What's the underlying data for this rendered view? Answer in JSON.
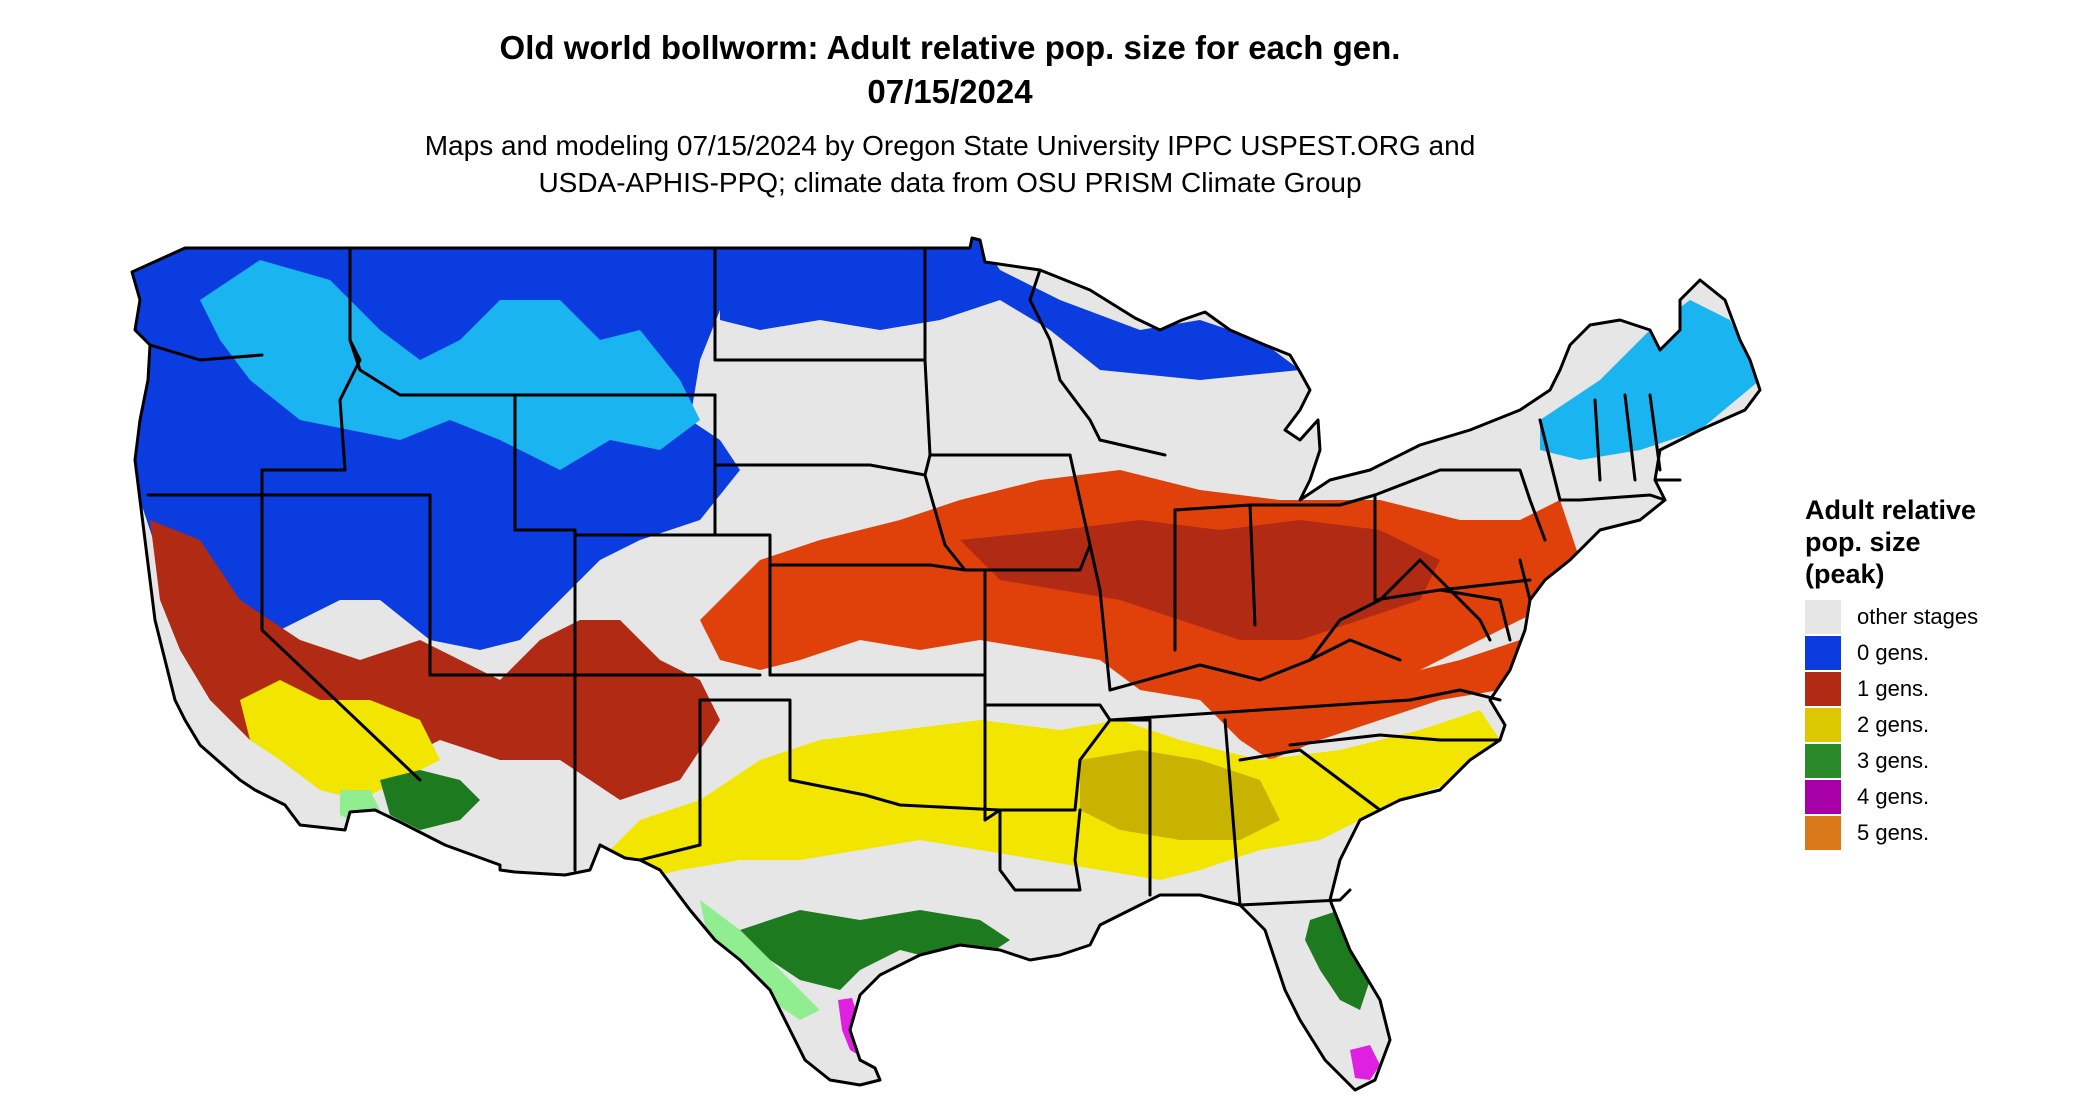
{
  "title_line1": "Old world bollworm: Adult relative pop. size for each gen.",
  "title_line2": "07/15/2024",
  "subtitle_line1": "Maps and modeling 07/15/2024 by Oregon State University IPPC USPEST.ORG and",
  "subtitle_line2": "USDA-APHIS-PPQ; climate data from OSU PRISM Climate Group",
  "legend": {
    "title_lines": [
      "Adult relative",
      "pop. size",
      "(peak)"
    ],
    "items": [
      {
        "label": "other stages",
        "color": "#e6e6e6"
      },
      {
        "label": "0 gens.",
        "color": "#0a3ce0"
      },
      {
        "label": "1 gens.",
        "color": "#b02a14"
      },
      {
        "label": "2 gens.",
        "color": "#dcc800"
      },
      {
        "label": "3 gens.",
        "color": "#2a8a2a"
      },
      {
        "label": "4 gens.",
        "color": "#a800a8"
      },
      {
        "label": "5 gens.",
        "color": "#d87818"
      }
    ]
  },
  "zone_colors": {
    "other": "#e6e6e6",
    "gen0_dark": "#0a3ce0",
    "gen0_light": "#1ab4f0",
    "gen1": "#e0400a",
    "gen1_dark": "#b02a14",
    "gen2": "#f2e600",
    "gen2_dark": "#c8b400",
    "gen3_dark": "#1e7a1e",
    "gen3_light": "#90ee90",
    "gen4": "#e020e0",
    "border": "#000000"
  }
}
